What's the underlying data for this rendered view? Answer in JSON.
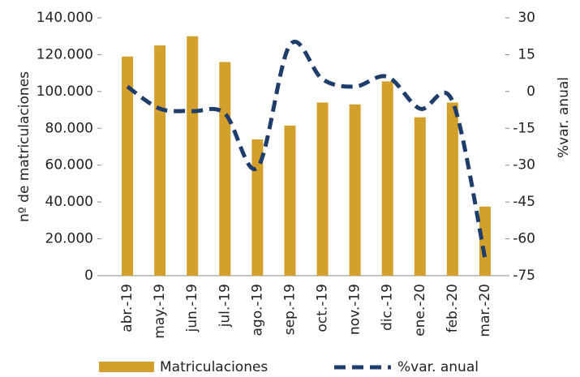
{
  "chart_data": {
    "type": "bar-line",
    "categories": [
      "abr.-19",
      "may.-19",
      "jun.-19",
      "jul.-19",
      "ago.-19",
      "sep.-19",
      "oct.-19",
      "nov.-19",
      "dic.-19",
      "ene.-20",
      "feb.-20",
      "mar.-20"
    ],
    "series": [
      {
        "name": "Matriculaciones",
        "color": "#d4a02c",
        "kind": "bar",
        "values": [
          119000,
          125000,
          130000,
          116000,
          74000,
          81500,
          94000,
          93000,
          105500,
          86000,
          94000,
          37500
        ]
      },
      {
        "name": "%var. anual",
        "color": "#1f3d6b",
        "kind": "line",
        "axis": "y2",
        "dashed": true,
        "values": [
          2,
          -7,
          -8,
          -9,
          -31,
          19,
          5,
          2,
          6,
          -7,
          -4,
          -68
        ]
      }
    ],
    "ylabel": "nº de matriculaciones",
    "y2label": "%var. anual",
    "ylim": [
      0,
      140000
    ],
    "yticks": [
      0,
      {
        "value": 20000,
        "label": "20.000"
      },
      {
        "value": 40000,
        "label": "40.000"
      },
      {
        "value": 60000,
        "label": "60.000"
      },
      {
        "value": 80000,
        "label": "80.000"
      },
      {
        "value": 100000,
        "label": "100.000"
      },
      {
        "value": 120000,
        "label": "120.000"
      },
      {
        "value": 140000,
        "label": "140.000"
      }
    ],
    "y2lim": [
      -75,
      30
    ],
    "y2ticks": [
      -75,
      -60,
      -45,
      -30,
      -15,
      0,
      15,
      30
    ],
    "legend": "bottom"
  }
}
